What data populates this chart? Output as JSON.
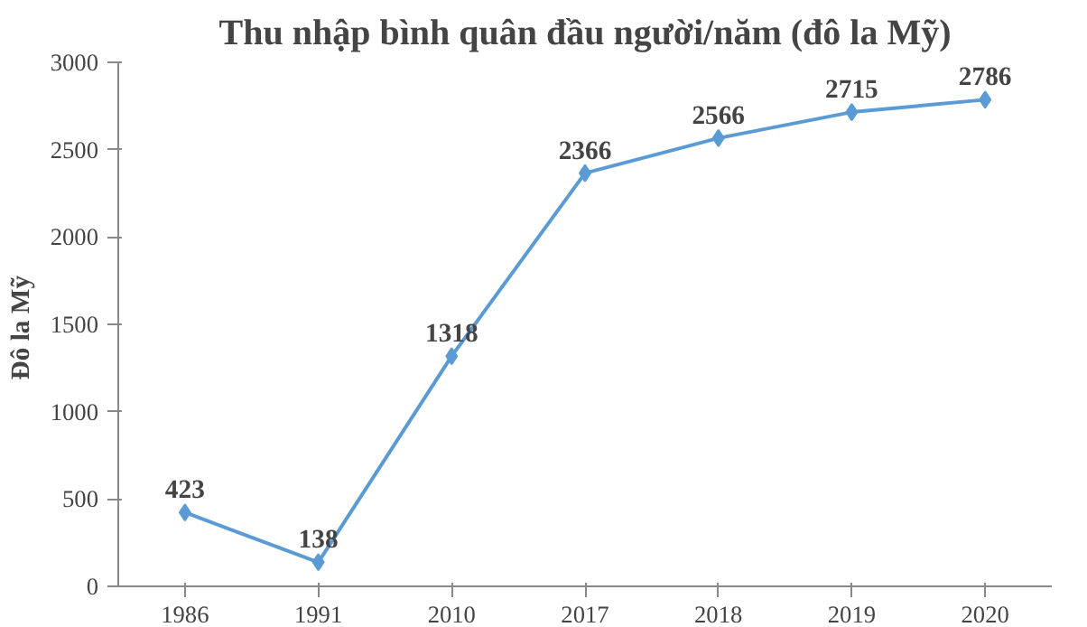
{
  "chart_data": {
    "type": "line",
    "title": "Thu nhập bình quân đầu người/năm (đô la Mỹ)",
    "ylabel": "Đô la  Mỹ",
    "categories": [
      "1986",
      "1991",
      "2010",
      "2017",
      "2018",
      "2019",
      "2020"
    ],
    "series": [
      {
        "color": "#5b9bd5",
        "values": [
          423,
          138,
          1318,
          2366,
          2566,
          2715,
          2786
        ]
      }
    ],
    "ylim": [
      0,
      3000
    ],
    "yticks": [
      0,
      500,
      1000,
      1500,
      2000,
      2500,
      3000
    ],
    "data_labels": true,
    "grid": false,
    "marker": "diamond",
    "line_style": "solid"
  }
}
